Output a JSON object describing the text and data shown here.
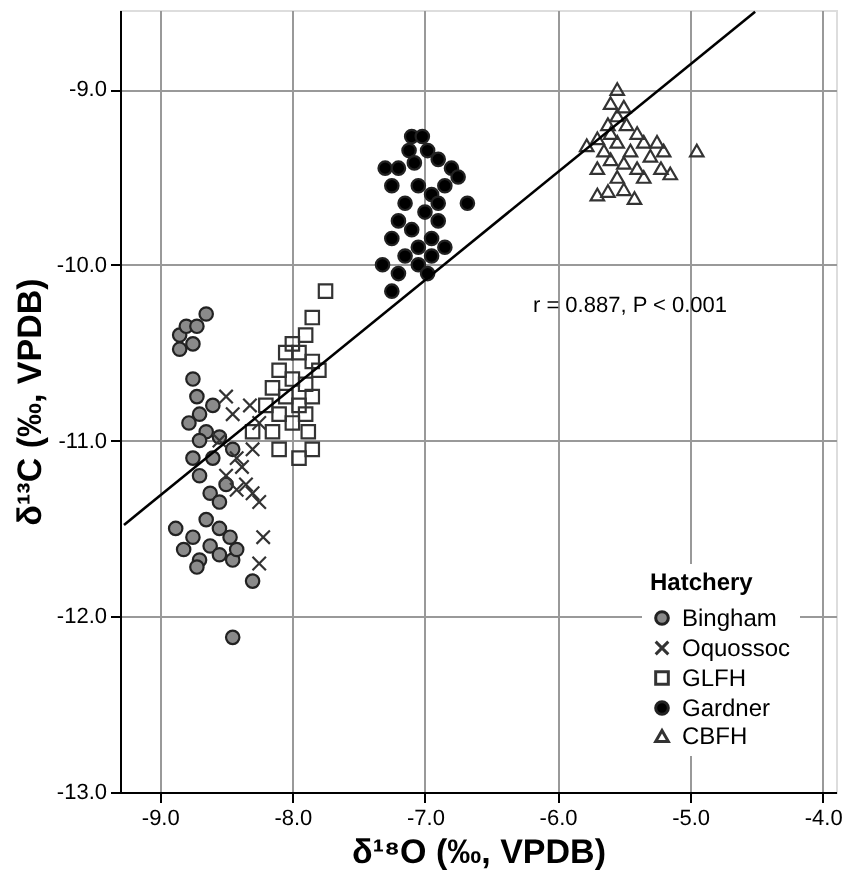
{
  "chart_data": {
    "type": "scatter",
    "xlabel": "δ¹⁸O (‰, VPDB)",
    "ylabel": "δ¹³C (‰, VPDB)",
    "legend_title": "Hatchery",
    "legend": "bottom right",
    "grid": true,
    "xlim": [
      -9.3,
      -3.9
    ],
    "ylim": [
      -13.0,
      -8.55
    ],
    "xticks": [
      {
        "value": -9,
        "label": "-9.0"
      },
      {
        "value": -8,
        "label": "-8.0"
      },
      {
        "value": -7,
        "label": "-7.0"
      },
      {
        "value": -6,
        "label": "-6.0"
      },
      {
        "value": -5,
        "label": "-5.0"
      },
      {
        "value": -4,
        "label": "-4.0"
      }
    ],
    "yticks": [
      {
        "value": -13,
        "label": "-13.0"
      },
      {
        "value": -12,
        "label": "-12.0"
      },
      {
        "value": -11,
        "label": "-11.0"
      },
      {
        "value": -10,
        "label": "-10.0"
      },
      {
        "value": -9,
        "label": "-9.0"
      }
    ],
    "annotations": [
      "r = 0.887, P < 0.001"
    ],
    "series": [
      {
        "name": "Bingham",
        "color": "#8a8a8a",
        "marker": "circle",
        "x": [
          -8.85,
          -8.8,
          -8.72,
          -8.65,
          -8.85,
          -8.75,
          -8.75,
          -8.72,
          -8.7,
          -8.78,
          -8.65,
          -8.6,
          -8.7,
          -8.55,
          -8.6,
          -8.75,
          -8.7,
          -8.62,
          -8.55,
          -8.65,
          -8.55,
          -8.88,
          -8.82,
          -8.75,
          -8.7,
          -8.72,
          -8.62,
          -8.55,
          -8.47,
          -8.45,
          -8.42,
          -8.3,
          -8.45,
          -8.5,
          -8.45
        ],
        "values": [
          -10.4,
          -10.35,
          -10.35,
          -10.28,
          -10.48,
          -10.45,
          -10.65,
          -10.75,
          -10.85,
          -10.9,
          -10.95,
          -10.8,
          -11.0,
          -10.98,
          -11.1,
          -11.1,
          -11.2,
          -11.3,
          -11.35,
          -11.45,
          -11.5,
          -11.5,
          -11.62,
          -11.55,
          -11.68,
          -11.72,
          -11.6,
          -11.65,
          -11.55,
          -11.68,
          -11.62,
          -11.8,
          -12.12,
          -11.25,
          -11.05
        ]
      },
      {
        "name": "Oquossoc",
        "color": "#333333",
        "marker": "cross",
        "x": [
          -8.5,
          -8.45,
          -8.42,
          -8.38,
          -8.3,
          -8.25,
          -8.35,
          -8.3,
          -8.25,
          -8.42,
          -8.5,
          -8.22,
          -8.25,
          -8.55,
          -8.32
        ],
        "values": [
          -10.75,
          -10.85,
          -11.1,
          -11.15,
          -11.05,
          -10.9,
          -11.25,
          -11.3,
          -11.35,
          -11.28,
          -11.2,
          -11.55,
          -11.7,
          -11.0,
          -10.8
        ]
      },
      {
        "name": "GLFH",
        "color": "#333333",
        "marker": "square",
        "x": [
          -7.75,
          -7.85,
          -7.9,
          -8.0,
          -8.05,
          -7.95,
          -7.85,
          -8.1,
          -8.0,
          -7.9,
          -7.8,
          -8.15,
          -8.05,
          -7.95,
          -7.85,
          -8.2,
          -8.1,
          -8.0,
          -7.9,
          -8.15,
          -7.85,
          -7.95,
          -8.1,
          -8.3,
          -7.88
        ],
        "values": [
          -10.15,
          -10.3,
          -10.4,
          -10.45,
          -10.5,
          -10.5,
          -10.55,
          -10.6,
          -10.65,
          -10.68,
          -10.6,
          -10.7,
          -10.75,
          -10.8,
          -10.75,
          -10.8,
          -10.85,
          -10.9,
          -10.85,
          -10.95,
          -11.05,
          -11.1,
          -11.05,
          -10.95,
          -10.95
        ]
      },
      {
        "name": "Gardner",
        "color": "#000000",
        "marker": "circle",
        "x": [
          -7.1,
          -7.02,
          -7.12,
          -6.98,
          -7.3,
          -7.2,
          -6.9,
          -6.8,
          -6.75,
          -7.25,
          -7.05,
          -6.95,
          -6.85,
          -6.68,
          -7.15,
          -7.0,
          -6.9,
          -7.2,
          -7.1,
          -6.95,
          -7.25,
          -7.05,
          -6.85,
          -7.15,
          -6.95,
          -7.32,
          -7.2,
          -7.05,
          -6.98,
          -7.25,
          -6.9,
          -7.08
        ],
        "values": [
          -9.27,
          -9.27,
          -9.35,
          -9.35,
          -9.45,
          -9.45,
          -9.4,
          -9.45,
          -9.5,
          -9.55,
          -9.55,
          -9.6,
          -9.55,
          -9.65,
          -9.65,
          -9.7,
          -9.75,
          -9.75,
          -9.8,
          -9.85,
          -9.85,
          -9.9,
          -9.9,
          -9.95,
          -9.95,
          -10.0,
          -10.05,
          -10.0,
          -10.05,
          -10.15,
          -9.65,
          -9.42
        ]
      },
      {
        "name": "CBFH",
        "color": "#333333",
        "marker": "triangle",
        "x": [
          -5.55,
          -5.6,
          -5.5,
          -5.55,
          -5.62,
          -5.48,
          -5.4,
          -5.7,
          -5.55,
          -5.35,
          -5.78,
          -5.65,
          -5.45,
          -5.25,
          -5.6,
          -5.5,
          -5.3,
          -5.2,
          -5.7,
          -5.4,
          -5.22,
          -5.55,
          -5.35,
          -4.95,
          -5.7,
          -5.62,
          -5.5,
          -5.42,
          -5.15,
          -5.6
        ],
        "values": [
          -9.0,
          -9.08,
          -9.1,
          -9.15,
          -9.2,
          -9.2,
          -9.25,
          -9.28,
          -9.3,
          -9.3,
          -9.32,
          -9.35,
          -9.35,
          -9.3,
          -9.4,
          -9.42,
          -9.38,
          -9.35,
          -9.45,
          -9.45,
          -9.45,
          -9.5,
          -9.5,
          -9.35,
          -9.6,
          -9.58,
          -9.57,
          -9.62,
          -9.48,
          -9.25
        ]
      },
      {
        "type": "line",
        "color": "#000000",
        "line_style": "solid",
        "x": [
          -9.27,
          -4.51
        ],
        "values": [
          -11.48,
          -8.56
        ]
      }
    ]
  }
}
